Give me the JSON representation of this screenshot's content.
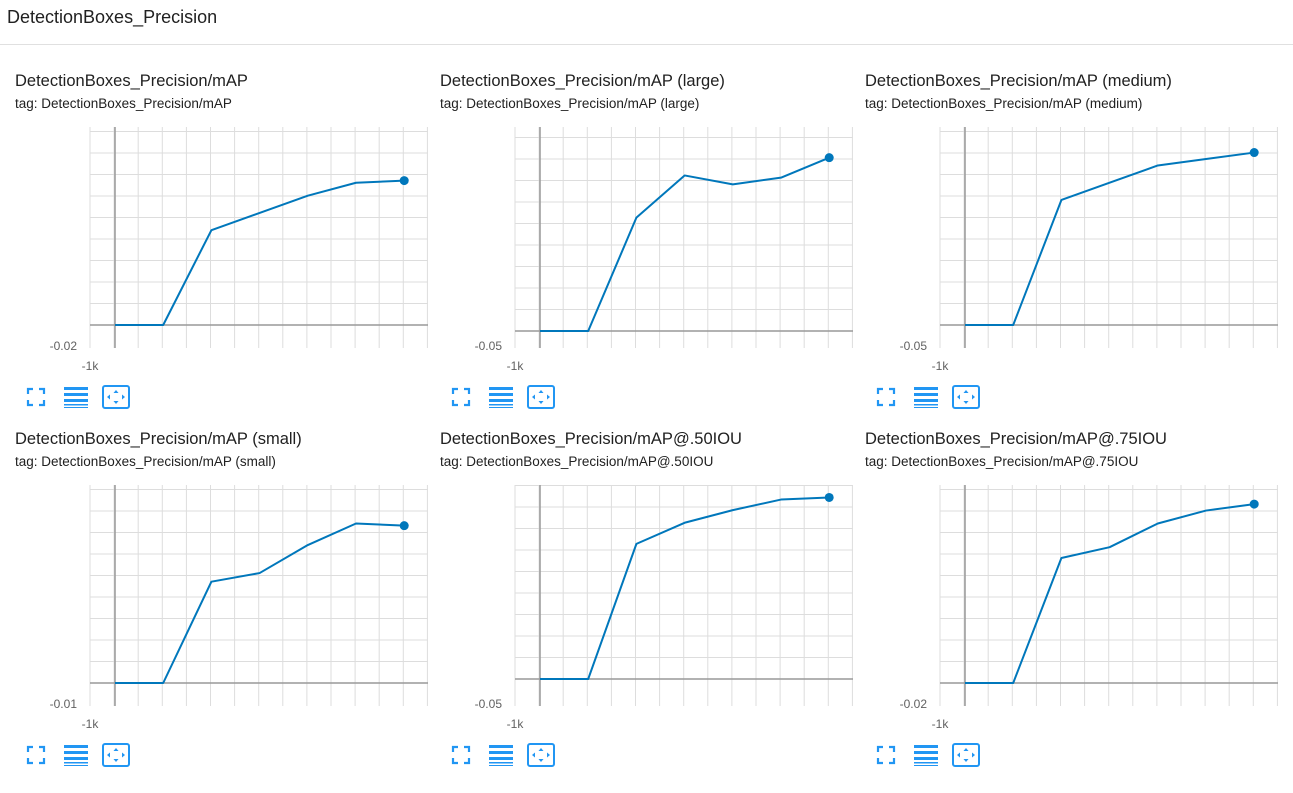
{
  "section": {
    "title": "DetectionBoxes_Precision"
  },
  "colors": {
    "line": "#0077bb",
    "grid": "#dddddd",
    "axis": "#999999",
    "icon": "#2196f3"
  },
  "toolbar_icons": [
    "fullscreen-icon",
    "toggle-log-scale-icon",
    "fit-domain-icon"
  ],
  "cards": [
    {
      "title": "DetectionBoxes_Precision/mAP",
      "tag": "tag: DetectionBoxes_Precision/mAP",
      "chart_data": {
        "type": "line",
        "title": "DetectionBoxes_Precision/mAP",
        "x_tick_label": "-1k",
        "y_tick_label": "-0.02",
        "series": [
          {
            "x": [
              -1000,
              0,
              1000,
              2000,
              3000,
              4000,
              5000
            ],
            "y": [
              0,
              0,
              0.44,
              0.52,
              0.6,
              0.66,
              0.67
            ]
          }
        ],
        "grid": true
      }
    },
    {
      "title": "DetectionBoxes_Precision/mAP (large)",
      "tag": "tag: DetectionBoxes_Precision/mAP (large)",
      "chart_data": {
        "type": "line",
        "title": "DetectionBoxes_Precision/mAP (large)",
        "x_tick_label": "-1k",
        "y_tick_label": "-0.05",
        "series": [
          {
            "x": [
              -1000,
              0,
              1000,
              2000,
              3000,
              4000,
              5000
            ],
            "y": [
              0,
              0,
              0.51,
              0.7,
              0.66,
              0.69,
              0.78
            ]
          }
        ],
        "grid": true
      }
    },
    {
      "title": "DetectionBoxes_Precision/mAP (medium)",
      "tag": "tag: DetectionBoxes_Precision/mAP (medium)",
      "chart_data": {
        "type": "line",
        "title": "DetectionBoxes_Precision/mAP (medium)",
        "x_tick_label": "-1k",
        "y_tick_label": "-0.05",
        "series": [
          {
            "x": [
              -1000,
              0,
              1000,
              2000,
              3000,
              4000,
              5000
            ],
            "y": [
              0,
              0,
              0.58,
              0.66,
              0.74,
              0.77,
              0.8
            ]
          }
        ],
        "grid": true
      }
    },
    {
      "title": "DetectionBoxes_Precision/mAP (small)",
      "tag": "tag: DetectionBoxes_Precision/mAP (small)",
      "chart_data": {
        "type": "line",
        "title": "DetectionBoxes_Precision/mAP (small)",
        "x_tick_label": "-1k",
        "y_tick_label": "-0.01",
        "series": [
          {
            "x": [
              -1000,
              0,
              1000,
              2000,
              3000,
              4000,
              5000
            ],
            "y": [
              0,
              0,
              0.47,
              0.51,
              0.64,
              0.74,
              0.73
            ]
          }
        ],
        "grid": true
      }
    },
    {
      "title": "DetectionBoxes_Precision/mAP@.50IOU",
      "tag": "tag: DetectionBoxes_Precision/mAP@.50IOU",
      "chart_data": {
        "type": "line",
        "title": "DetectionBoxes_Precision/mAP@.50IOU",
        "x_tick_label": "-1k",
        "y_tick_label": "-0.05",
        "series": [
          {
            "x": [
              -1000,
              0,
              1000,
              2000,
              3000,
              4000,
              5000
            ],
            "y": [
              0,
              0,
              0.64,
              0.74,
              0.8,
              0.85,
              0.86
            ]
          }
        ],
        "grid": true
      }
    },
    {
      "title": "DetectionBoxes_Precision/mAP@.75IOU",
      "tag": "tag: DetectionBoxes_Precision/mAP@.75IOU",
      "chart_data": {
        "type": "line",
        "title": "DetectionBoxes_Precision/mAP@.75IOU",
        "x_tick_label": "-1k",
        "y_tick_label": "-0.02",
        "series": [
          {
            "x": [
              -1000,
              0,
              1000,
              2000,
              3000,
              4000,
              5000
            ],
            "y": [
              0,
              0,
              0.58,
              0.63,
              0.74,
              0.8,
              0.83
            ]
          }
        ],
        "grid": true
      }
    }
  ]
}
